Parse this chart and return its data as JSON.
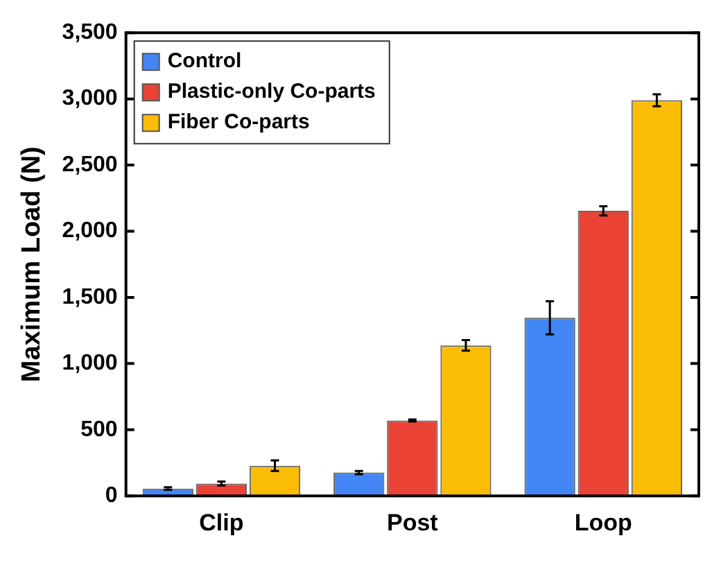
{
  "chart_data": {
    "type": "bar",
    "ylabel": "Maximum Load (N)",
    "categories": [
      "Clip",
      "Post",
      "Loop"
    ],
    "series": [
      {
        "name": "Control",
        "color": "#4285f4",
        "values": [
          55,
          176,
          1346
        ],
        "errors": [
          10,
          12,
          125
        ]
      },
      {
        "name": "Plastic-only Co-parts",
        "color": "#ea4335",
        "values": [
          93,
          570,
          2154
        ],
        "errors": [
          15,
          8,
          35
        ]
      },
      {
        "name": "Fiber Co-parts",
        "color": "#fbbc05",
        "values": [
          228,
          1137,
          2990
        ],
        "errors": [
          40,
          40,
          45
        ]
      }
    ],
    "ylim": [
      0,
      3500
    ],
    "yticks": [
      0,
      500,
      {
        "value": 1000,
        "label": "1,000"
      },
      {
        "value": 1500,
        "label": "1,500"
      },
      {
        "value": 2000,
        "label": "2,000"
      },
      {
        "value": 2500,
        "label": "2,500"
      },
      {
        "value": 3000,
        "label": "3,000"
      },
      {
        "value": 3500,
        "label": "3,500"
      }
    ],
    "grid": false,
    "legend": "top left"
  }
}
